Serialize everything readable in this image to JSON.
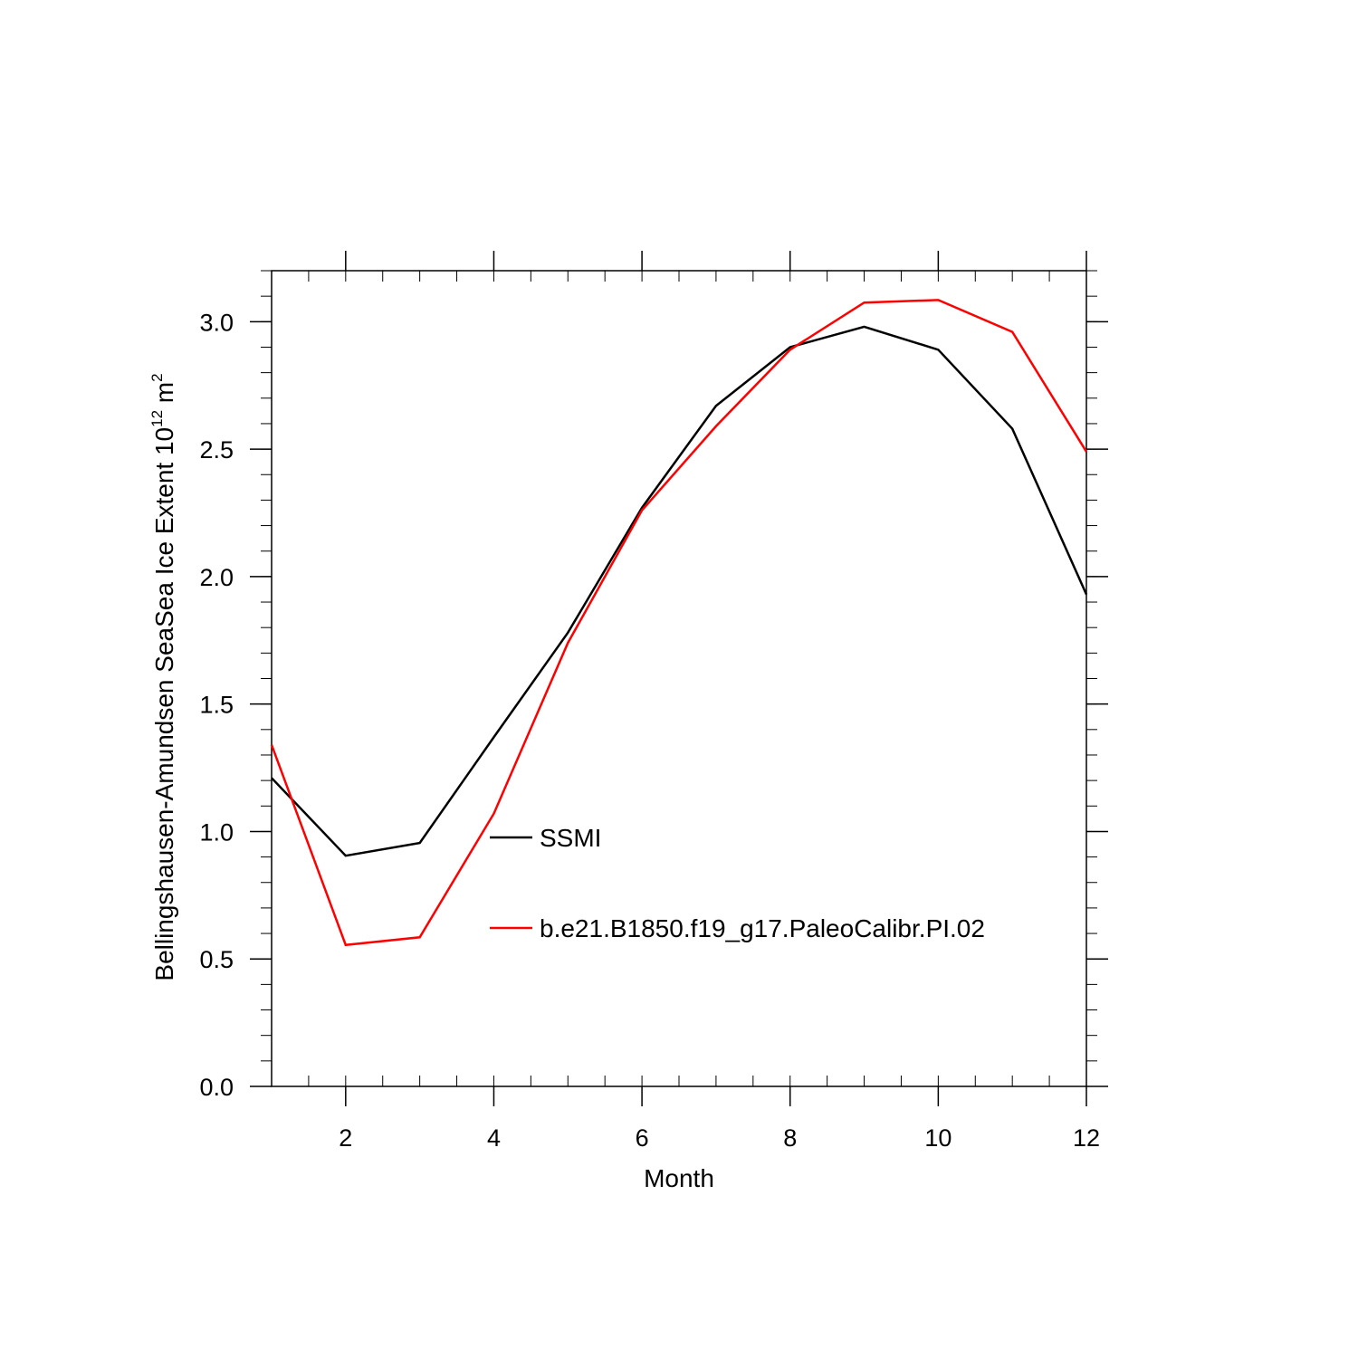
{
  "chart_data": {
    "type": "line",
    "title": "",
    "xlabel": "Month",
    "ylabel": "Bellingshausen-Amundsen SeaSea Ice Extent 10",
    "ylabel_exponent": "12",
    "ylabel_unit": " m",
    "ylabel_unit_exponent": "2",
    "xlim": [
      1,
      12
    ],
    "ylim": [
      0,
      3.2
    ],
    "x": [
      1,
      2,
      3,
      4,
      5,
      6,
      7,
      8,
      9,
      10,
      11,
      12
    ],
    "x_ticks": [
      2,
      4,
      6,
      8,
      10,
      12
    ],
    "x_tick_labels": [
      "2",
      "4",
      "6",
      "8",
      "10",
      "12"
    ],
    "y_ticks": [
      0,
      0.5,
      1.0,
      1.5,
      2.0,
      2.5,
      3.0
    ],
    "y_tick_labels": [
      "0.0",
      "0.5",
      "1.0",
      "1.5",
      "2.0",
      "2.5",
      "3.0"
    ],
    "grid": false,
    "legend_position": "center",
    "series": [
      {
        "name": "SSMI",
        "color": "#000000",
        "values": [
          1.21,
          0.905,
          0.955,
          1.37,
          1.78,
          2.27,
          2.67,
          2.9,
          2.98,
          2.89,
          2.58,
          1.93
        ]
      },
      {
        "name": "b.e21.B1850.f19_g17.PaleoCalibr.PI.02",
        "color": "#ff0000",
        "values": [
          1.34,
          0.555,
          0.585,
          1.07,
          1.74,
          2.26,
          2.59,
          2.89,
          3.075,
          3.085,
          2.96,
          2.49
        ]
      }
    ]
  }
}
